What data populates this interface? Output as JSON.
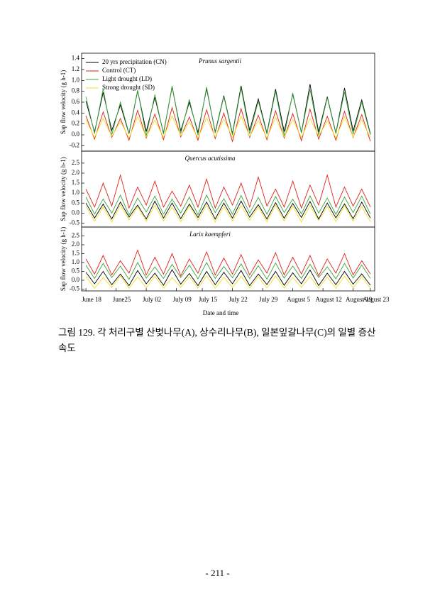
{
  "chart_data": [
    {
      "type": "line",
      "title": "Prunus sargentii",
      "y_label": "Sap flow velocity (g h-1)",
      "x": [
        0,
        2,
        4,
        6,
        8,
        10,
        12,
        14,
        16,
        18,
        20,
        22,
        24,
        26,
        28,
        30,
        32,
        34,
        36,
        38,
        40,
        42,
        44,
        46,
        48,
        50,
        52,
        54,
        56,
        58,
        60,
        62,
        64,
        66
      ],
      "xlim": [
        -1,
        67
      ],
      "ylim": [
        -0.3,
        1.5
      ],
      "yticks": [
        -0.2,
        {
          "value": 0,
          "label": "0.0"
        },
        0.2,
        0.4,
        0.6,
        0.8,
        {
          "value": 1,
          "label": "1.0"
        },
        1.2,
        1.4
      ],
      "legend": "upper left",
      "series": [
        {
          "name": "20 yrs precipitation (CN)",
          "color": "#000000",
          "values": [
            0.62,
            0.05,
            0.78,
            0.08,
            0.55,
            0.02,
            0.81,
            0.06,
            0.69,
            0.03,
            0.88,
            0.07,
            0.6,
            0.04,
            0.85,
            0.05,
            0.72,
            0.02,
            0.9,
            0.08,
            0.66,
            0.03,
            0.84,
            0.06,
            0.75,
            0.04,
            0.93,
            0.05,
            0.7,
            0.03,
            0.86,
            0.07,
            0.64,
            0.02
          ]
        },
        {
          "name": "Control (CT)",
          "color": "#e0201b",
          "values": [
            0.35,
            -0.08,
            0.42,
            -0.05,
            0.3,
            -0.1,
            0.45,
            -0.06,
            0.38,
            -0.09,
            0.5,
            -0.04,
            0.33,
            -0.1,
            0.46,
            -0.07,
            0.4,
            -0.12,
            0.48,
            -0.05,
            0.36,
            -0.09,
            0.44,
            -0.06,
            0.39,
            -0.11,
            0.47,
            -0.08,
            0.34,
            -0.1,
            0.43,
            -0.05,
            0.37,
            -0.12
          ]
        },
        {
          "name": "Light drought (LD)",
          "color": "#3aa53a",
          "values": [
            0.7,
            0.02,
            0.85,
            0.0,
            0.6,
            0.03,
            0.82,
            -0.02,
            0.74,
            0.01,
            0.9,
            0.02,
            0.65,
            -0.01,
            0.88,
            0.03,
            0.7,
            0.0,
            0.86,
            0.02,
            0.62,
            0.01,
            0.8,
            -0.02,
            0.77,
            0.03,
            0.84,
            0.0,
            0.68,
            0.02,
            0.79,
            0.01,
            0.6,
            0.0
          ]
        },
        {
          "name": "Strong drought (SD)",
          "color": "#f0e020",
          "values": [
            0.28,
            -0.05,
            0.3,
            -0.03,
            0.25,
            -0.06,
            0.33,
            -0.04,
            0.27,
            -0.05,
            0.35,
            -0.02,
            0.24,
            -0.06,
            0.31,
            -0.04,
            0.29,
            -0.05,
            0.34,
            -0.03,
            0.26,
            -0.06,
            0.32,
            -0.04,
            0.28,
            -0.05,
            0.3,
            -0.02,
            0.25,
            -0.06,
            0.33,
            -0.04,
            0.27,
            -0.05
          ]
        }
      ]
    },
    {
      "type": "line",
      "title": "Quercus acutissima",
      "y_label": "Sap flow velocity (g h-1)",
      "x": [
        0,
        2,
        4,
        6,
        8,
        10,
        12,
        14,
        16,
        18,
        20,
        22,
        24,
        26,
        28,
        30,
        32,
        34,
        36,
        38,
        40,
        42,
        44,
        46,
        48,
        50,
        52,
        54,
        56,
        58,
        60,
        62,
        64,
        66
      ],
      "xlim": [
        -1,
        67
      ],
      "ylim": [
        -0.7,
        3.1
      ],
      "yticks": [
        -0.5,
        {
          "value": 0,
          "label": "0.0"
        },
        0.5,
        {
          "value": 1,
          "label": "1.0"
        },
        1.5,
        {
          "value": 2,
          "label": "2.0"
        },
        2.5
      ],
      "series": [
        {
          "color": "#f0e020",
          "values": [
            0.35,
            -0.4,
            0.3,
            -0.45,
            0.4,
            -0.35,
            0.32,
            -0.42,
            0.38,
            -0.4,
            0.3,
            -0.44,
            0.36,
            -0.38,
            0.4,
            -0.45,
            0.33,
            -0.4,
            0.37,
            -0.36,
            0.3,
            -0.43,
            0.39,
            -0.4,
            0.34,
            -0.45,
            0.38,
            -0.37,
            0.31,
            -0.42,
            0.36,
            -0.4,
            0.33,
            -0.44
          ]
        },
        {
          "color": "#000000",
          "values": [
            0.5,
            -0.25,
            0.45,
            -0.3,
            0.55,
            -0.2,
            0.4,
            -0.3,
            0.6,
            -0.25,
            0.5,
            -0.28,
            0.45,
            -0.22,
            0.55,
            -0.3,
            0.5,
            -0.25,
            0.6,
            -0.2,
            0.42,
            -0.3,
            0.52,
            -0.26,
            0.48,
            -0.22,
            0.58,
            -0.3,
            0.5,
            -0.24,
            0.46,
            -0.28,
            0.55,
            -0.25
          ]
        },
        {
          "color": "#3aa53a",
          "values": [
            0.8,
            -0.05,
            0.7,
            0.0,
            0.9,
            -0.1,
            0.75,
            0.05,
            0.85,
            -0.05,
            0.7,
            0.0,
            0.8,
            -0.08,
            0.9,
            0.02,
            0.72,
            -0.05,
            0.88,
            0.0,
            0.78,
            -0.06,
            0.83,
            0.03,
            0.7,
            -0.04,
            0.86,
            0.0,
            0.75,
            -0.07,
            0.8,
            0.02,
            0.85,
            -0.05
          ]
        },
        {
          "color": "#e0201b",
          "values": [
            1.2,
            0.3,
            1.5,
            0.35,
            1.9,
            0.25,
            1.3,
            0.4,
            1.6,
            0.3,
            1.1,
            0.35,
            1.4,
            0.3,
            1.7,
            0.25,
            1.3,
            0.4,
            1.5,
            0.3,
            1.8,
            0.35,
            1.2,
            0.3,
            1.6,
            0.25,
            1.4,
            0.4,
            1.9,
            0.3,
            1.3,
            0.35,
            1.2,
            0.3
          ]
        }
      ]
    },
    {
      "type": "line",
      "title": "Larix kaempferi",
      "y_label": "Sap flow velocity (g h-1)",
      "x_label": "Date and time",
      "x": [
        0,
        2,
        4,
        6,
        8,
        10,
        12,
        14,
        16,
        18,
        20,
        22,
        24,
        26,
        28,
        30,
        32,
        34,
        36,
        38,
        40,
        42,
        44,
        46,
        48,
        50,
        52,
        54,
        56,
        58,
        60,
        62,
        64,
        66
      ],
      "xlim": [
        -1,
        67
      ],
      "ylim": [
        -0.6,
        3.0
      ],
      "xticks": [
        {
          "value": 0,
          "label": "June 18"
        },
        {
          "value": 7,
          "label": "June25"
        },
        {
          "value": 14,
          "label": "July 02"
        },
        {
          "value": 21,
          "label": "July 09"
        },
        {
          "value": 27,
          "label": "July 15"
        },
        {
          "value": 34,
          "label": "July 22"
        },
        {
          "value": 41,
          "label": "July 29"
        },
        {
          "value": 48,
          "label": "August 5"
        },
        {
          "value": 55,
          "label": "August 12"
        },
        {
          "value": 62,
          "label": "August 19"
        },
        {
          "value": 66,
          "label": "August 23"
        }
      ],
      "yticks": [
        -0.5,
        {
          "value": 0,
          "label": "0.0"
        },
        0.5,
        {
          "value": 1,
          "label": "1.0"
        },
        1.5,
        {
          "value": 2,
          "label": "2.0"
        },
        2.5
      ],
      "series": [
        {
          "color": "#f0e020",
          "values": [
            0.2,
            -0.45,
            0.15,
            -0.4,
            0.25,
            -0.45,
            0.18,
            -0.42,
            0.22,
            -0.45,
            0.15,
            -0.4,
            0.2,
            -0.44,
            0.25,
            -0.45,
            0.17,
            -0.41,
            0.22,
            -0.45,
            0.19,
            -0.43,
            0.24,
            -0.45,
            0.16,
            -0.4,
            0.21,
            -0.44,
            0.18,
            -0.45,
            0.23,
            -0.42,
            0.2,
            -0.45
          ]
        },
        {
          "color": "#000000",
          "values": [
            0.45,
            -0.2,
            0.5,
            -0.25,
            0.35,
            -0.3,
            0.55,
            -0.2,
            0.4,
            -0.28,
            0.6,
            -0.22,
            0.38,
            -0.3,
            0.5,
            -0.25,
            0.45,
            -0.2,
            0.55,
            -0.3,
            0.35,
            -0.24,
            0.5,
            -0.28,
            0.42,
            -0.2,
            0.58,
            -0.3,
            0.4,
            -0.25,
            0.5,
            -0.22,
            0.36,
            -0.28
          ]
        },
        {
          "color": "#3aa53a",
          "values": [
            0.85,
            0.1,
            0.95,
            0.15,
            0.8,
            0.05,
            1.0,
            0.12,
            0.75,
            0.1,
            0.9,
            0.15,
            0.85,
            0.08,
            1.0,
            0.1,
            0.78,
            0.14,
            0.92,
            0.1,
            0.82,
            0.06,
            0.97,
            0.12,
            0.8,
            0.1,
            0.9,
            0.15,
            0.76,
            0.08,
            0.95,
            0.12,
            0.86,
            0.1
          ]
        },
        {
          "color": "#e0201b",
          "values": [
            1.2,
            0.35,
            1.4,
            0.3,
            1.1,
            0.4,
            1.7,
            0.3,
            1.3,
            0.35,
            1.5,
            0.25,
            1.2,
            0.4,
            1.6,
            0.3,
            1.25,
            0.35,
            1.45,
            0.3,
            1.15,
            0.4,
            1.55,
            0.3,
            1.3,
            0.35,
            1.4,
            0.25,
            1.2,
            0.4,
            1.5,
            0.3,
            1.1,
            0.35
          ]
        }
      ]
    }
  ],
  "caption": "그림 129. 각 처리구별 산벚나무(A), 상수리나무(B), 일본잎갈나무(C)의 일별 증산 속도",
  "page_number": "- 211 -"
}
